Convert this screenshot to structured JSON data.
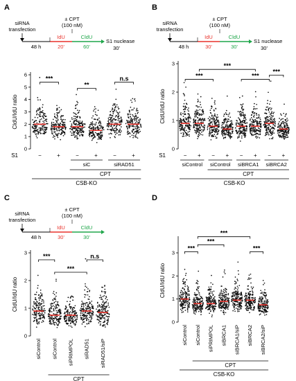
{
  "colors": {
    "idu": "#e8312a",
    "cldu": "#1fa64a",
    "median": "#e8312a",
    "dot": "#111111"
  },
  "panels": [
    {
      "letter": "A",
      "schematic": {
        "top": "siRNA\ntransfection",
        "wait": "48 h",
        "cpt": "± CPT\n(100 nM)",
        "idu": "IdU",
        "idu_time": "20'",
        "cldu": "CldU",
        "cldu_time": "60'",
        "s1": "S1 nuclease",
        "s1_time": "30'"
      },
      "ylabel": "CldU/IdU ratio",
      "yticks": [
        "0",
        "1",
        "2",
        "3",
        "4",
        "5",
        "6"
      ],
      "ymax": 6,
      "lanes": [
        {
          "s1": "−",
          "median": 2.0
        },
        {
          "s1": "+",
          "median": 1.8
        },
        {
          "s1": "−",
          "median": 1.8
        },
        {
          "s1": "+",
          "median": 1.5
        },
        {
          "s1": "−",
          "median": 2.0
        },
        {
          "s1": "+",
          "median": 2.0
        }
      ],
      "groups": [
        {
          "label": "siC",
          "from": 2,
          "to": 3
        },
        {
          "label": "siRAD51",
          "from": 4,
          "to": 5
        }
      ],
      "sig": [
        {
          "label": "***",
          "from": 0,
          "to": 1,
          "level": 5.4
        },
        {
          "label": "**",
          "from": 2,
          "to": 3,
          "level": 4.9
        },
        {
          "label": "n.s",
          "from": 4,
          "to": 5,
          "level": 5.4
        }
      ],
      "cpt": {
        "label": "CPT",
        "from": 2,
        "to": 5
      },
      "cell": "CSB-KO",
      "s1_label": "S1"
    },
    {
      "letter": "B",
      "schematic": {
        "top": "siRNA\ntransfection",
        "wait": "48 h",
        "cpt": "± CPT\n(100 nM)",
        "idu": "IdU",
        "idu_time": "30'",
        "cldu": "CldU",
        "cldu_time": "30'",
        "s1": "S1 nuclease",
        "s1_time": "30'"
      },
      "ylabel": "CldU/IdU ratio",
      "yticks": [
        "0",
        "1",
        "2",
        "3"
      ],
      "ymax": 3,
      "lanes": [
        {
          "s1": "−",
          "median": 0.9
        },
        {
          "s1": "+",
          "median": 0.9
        },
        {
          "s1": "−",
          "median": 0.8
        },
        {
          "s1": "+",
          "median": 0.7
        },
        {
          "s1": "−",
          "median": 0.8
        },
        {
          "s1": "+",
          "median": 0.8
        },
        {
          "s1": "−",
          "median": 0.9
        },
        {
          "s1": "+",
          "median": 0.7
        }
      ],
      "groups": [
        {
          "label": "siControl",
          "from": 0,
          "to": 1
        },
        {
          "label": "siControl",
          "from": 2,
          "to": 3
        },
        {
          "label": "siBRCA1",
          "from": 4,
          "to": 5
        },
        {
          "label": "siBRCA2",
          "from": 6,
          "to": 7
        }
      ],
      "sig": [
        {
          "label": "***",
          "from": 0,
          "to": 2,
          "level": 2.45
        },
        {
          "label": "***",
          "from": 1,
          "to": 5,
          "level": 2.8
        },
        {
          "label": "***",
          "from": 4,
          "to": 6,
          "level": 2.45
        },
        {
          "label": "***",
          "from": 6,
          "to": 7,
          "level": 2.6
        }
      ],
      "cpt": {
        "label": "CPT",
        "from": 2,
        "to": 7
      },
      "cell": "CSB-KO",
      "s1_label": "S1"
    },
    {
      "letter": "C",
      "schematic": {
        "top": "siRNA\ntransfection",
        "wait": "48 h",
        "cpt": "± CPT\n(100 nM)",
        "idu": "IdU",
        "idu_time": "30'",
        "cldu": "CldU",
        "cldu_time": "30'"
      },
      "ylabel": "CldU/IdU ratio",
      "yticks": [
        "0",
        "1",
        "2",
        "3"
      ],
      "ymax": 3,
      "lanes": [
        {
          "label": "siControl",
          "median": 0.9
        },
        {
          "label": "siControl",
          "median": 0.75
        },
        {
          "label": "siPRIMPOL",
          "median": 0.75
        },
        {
          "label": "siRAD51",
          "median": 0.9
        },
        {
          "label": "siRAD51/siP",
          "median": 0.85
        }
      ],
      "sig": [
        {
          "label": "***",
          "from": 0,
          "to": 1,
          "level": 2.75
        },
        {
          "label": "***",
          "from": 1,
          "to": 3,
          "level": 2.3
        },
        {
          "label": "n.s",
          "from": 3,
          "to": 4,
          "level": 2.75
        }
      ],
      "cpt": {
        "label": "CPT",
        "from": 1,
        "to": 4
      },
      "cell": "CSB-KO"
    },
    {
      "letter": "D",
      "ylabel": "CldU/IdU ratio",
      "yticks": [
        "0",
        "1",
        "2",
        "3"
      ],
      "ymax": 3.6,
      "lanes": [
        {
          "label": "siControl",
          "median": 1.0
        },
        {
          "label": "siControl",
          "median": 0.8
        },
        {
          "label": "siPRIMPOL",
          "median": 0.8
        },
        {
          "label": "siBRCA1",
          "median": 0.9
        },
        {
          "label": "siBRCA1/siP",
          "median": 0.95
        },
        {
          "label": "siBRCA2",
          "median": 0.95
        },
        {
          "label": "siBRCA2/siP",
          "median": 0.75
        }
      ],
      "sig": [
        {
          "label": "***",
          "from": 0,
          "to": 1,
          "level": 3.05
        },
        {
          "label": "***",
          "from": 1,
          "to": 3,
          "level": 3.35
        },
        {
          "label": "***",
          "from": 1,
          "to": 5,
          "level": 3.7
        },
        {
          "label": "***",
          "from": 5,
          "to": 6,
          "level": 3.05
        }
      ],
      "cpt": {
        "label": "CPT",
        "from": 1,
        "to": 6
      },
      "cell": "CSB-KO"
    }
  ]
}
